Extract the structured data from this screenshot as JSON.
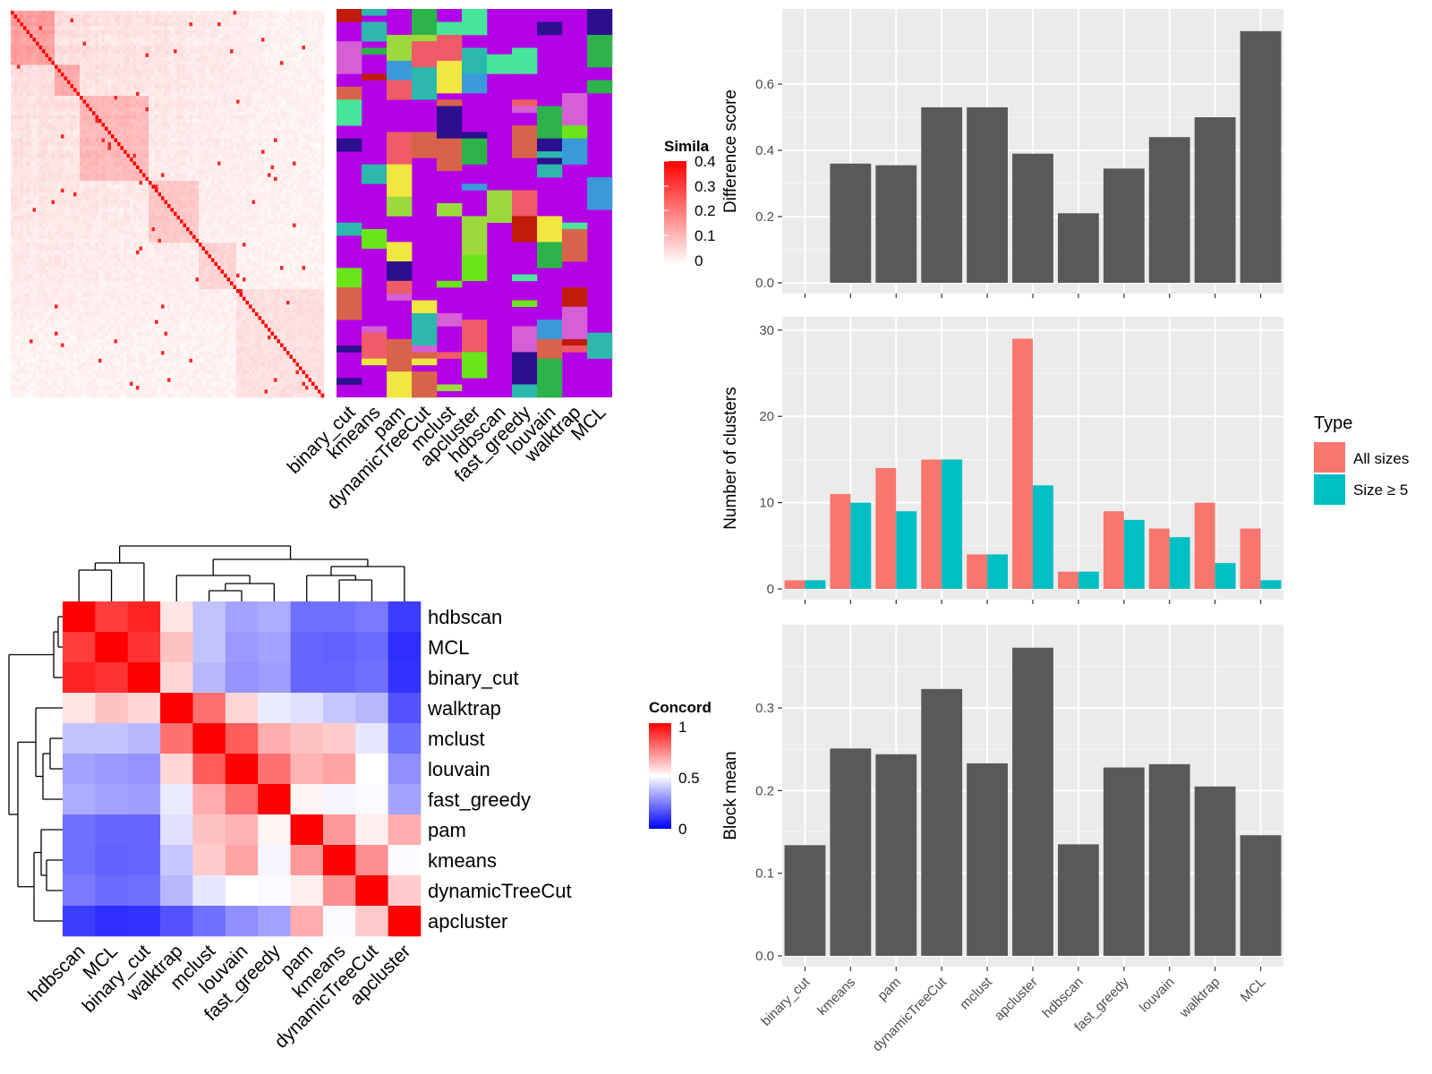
{
  "similarity_heatmap": {
    "legend_title": "Simila",
    "legend_ticks": [
      "0.4",
      "0.3",
      "0.2",
      "0.1",
      "0"
    ],
    "low_color": "#ffffff",
    "high_color": "#ff0000"
  },
  "cluster_strip": {
    "methods": [
      "binary_cut",
      "kmeans",
      "pam",
      "dynamicTreeCut",
      "mclust",
      "apcluster",
      "hdbscan",
      "fast_greedy",
      "louvain",
      "walktrap",
      "MCL"
    ],
    "background_color": "#b400e6",
    "palette": [
      "#d9634a",
      "#6ae51a",
      "#48e69a",
      "#2cb8ad",
      "#f2e641",
      "#2b0f8f",
      "#c01c0a",
      "#ef5b66",
      "#d55fd5",
      "#3a9ad9",
      "#9bd93c",
      "#2cb34a"
    ]
  },
  "concordance": {
    "legend_title": "Concord",
    "legend_ticks": [
      "1",
      "0.5",
      "0"
    ],
    "labels": [
      "hdbscan",
      "MCL",
      "binary_cut",
      "walktrap",
      "mclust",
      "louvain",
      "fast_greedy",
      "pam",
      "kmeans",
      "dynamicTreeCut",
      "apcluster"
    ],
    "matrix": [
      [
        1.0,
        0.88,
        0.93,
        0.55,
        0.38,
        0.32,
        0.34,
        0.22,
        0.22,
        0.24,
        0.12
      ],
      [
        0.88,
        1.0,
        0.9,
        0.62,
        0.38,
        0.3,
        0.32,
        0.2,
        0.19,
        0.21,
        0.09
      ],
      [
        0.93,
        0.9,
        1.0,
        0.58,
        0.36,
        0.29,
        0.31,
        0.2,
        0.2,
        0.22,
        0.1
      ],
      [
        0.55,
        0.62,
        0.58,
        1.0,
        0.78,
        0.58,
        0.46,
        0.44,
        0.39,
        0.36,
        0.16
      ],
      [
        0.38,
        0.38,
        0.36,
        0.78,
        1.0,
        0.82,
        0.66,
        0.62,
        0.6,
        0.45,
        0.22
      ],
      [
        0.32,
        0.3,
        0.29,
        0.58,
        0.82,
        1.0,
        0.78,
        0.65,
        0.68,
        0.5,
        0.28
      ],
      [
        0.34,
        0.32,
        0.31,
        0.46,
        0.66,
        0.78,
        1.0,
        0.52,
        0.48,
        0.49,
        0.32
      ],
      [
        0.22,
        0.2,
        0.2,
        0.44,
        0.62,
        0.65,
        0.52,
        1.0,
        0.7,
        0.53,
        0.66
      ],
      [
        0.22,
        0.19,
        0.2,
        0.39,
        0.6,
        0.68,
        0.48,
        0.7,
        1.0,
        0.72,
        0.49
      ],
      [
        0.24,
        0.21,
        0.22,
        0.36,
        0.45,
        0.5,
        0.49,
        0.53,
        0.72,
        1.0,
        0.6
      ],
      [
        0.12,
        0.09,
        0.1,
        0.16,
        0.22,
        0.28,
        0.32,
        0.66,
        0.49,
        0.6,
        1.0
      ]
    ]
  },
  "chart_data": [
    {
      "type": "bar",
      "categories": [
        "binary_cut",
        "kmeans",
        "pam",
        "dynamicTreeCut",
        "mclust",
        "apcluster",
        "hdbscan",
        "fast_greedy",
        "louvain",
        "walktrap",
        "MCL"
      ],
      "values": [
        0,
        0.36,
        0.355,
        0.53,
        0.53,
        0.39,
        0.21,
        0.345,
        0.44,
        0.5,
        0.76
      ],
      "ylabel": "Difference score",
      "ylim": [
        0,
        0.8
      ],
      "yticks": [
        "0.0",
        "0.2",
        "0.4",
        "0.6"
      ],
      "bar_color": "#595959",
      "grid": true
    },
    {
      "type": "bar",
      "categories": [
        "binary_cut",
        "kmeans",
        "pam",
        "dynamicTreeCut",
        "mclust",
        "apcluster",
        "hdbscan",
        "fast_greedy",
        "louvain",
        "walktrap",
        "MCL"
      ],
      "series": [
        {
          "name": "All sizes",
          "color": "#f8766d",
          "values": [
            1,
            11,
            14,
            15,
            4,
            29,
            2,
            9,
            7,
            10,
            7
          ]
        },
        {
          "name": "Size ≥ 5",
          "color": "#00bfc4",
          "values": [
            1,
            10,
            9,
            15,
            4,
            12,
            2,
            8,
            6,
            3,
            1
          ]
        }
      ],
      "ylabel": "Number of clusters",
      "ylim": [
        0,
        30.5
      ],
      "yticks": [
        "0",
        "10",
        "20",
        "30"
      ],
      "legend_title": "Type",
      "legend_position": "right",
      "grid": true
    },
    {
      "type": "bar",
      "categories": [
        "binary_cut",
        "kmeans",
        "pam",
        "dynamicTreeCut",
        "mclust",
        "apcluster",
        "hdbscan",
        "fast_greedy",
        "louvain",
        "walktrap",
        "MCL"
      ],
      "values": [
        0.134,
        0.251,
        0.244,
        0.323,
        0.233,
        0.373,
        0.135,
        0.228,
        0.232,
        0.205,
        0.146
      ],
      "ylabel": "Block mean",
      "ylim": [
        0,
        0.39
      ],
      "yticks": [
        "0.0",
        "0.1",
        "0.2",
        "0.3"
      ],
      "bar_color": "#595959",
      "grid": true
    }
  ]
}
